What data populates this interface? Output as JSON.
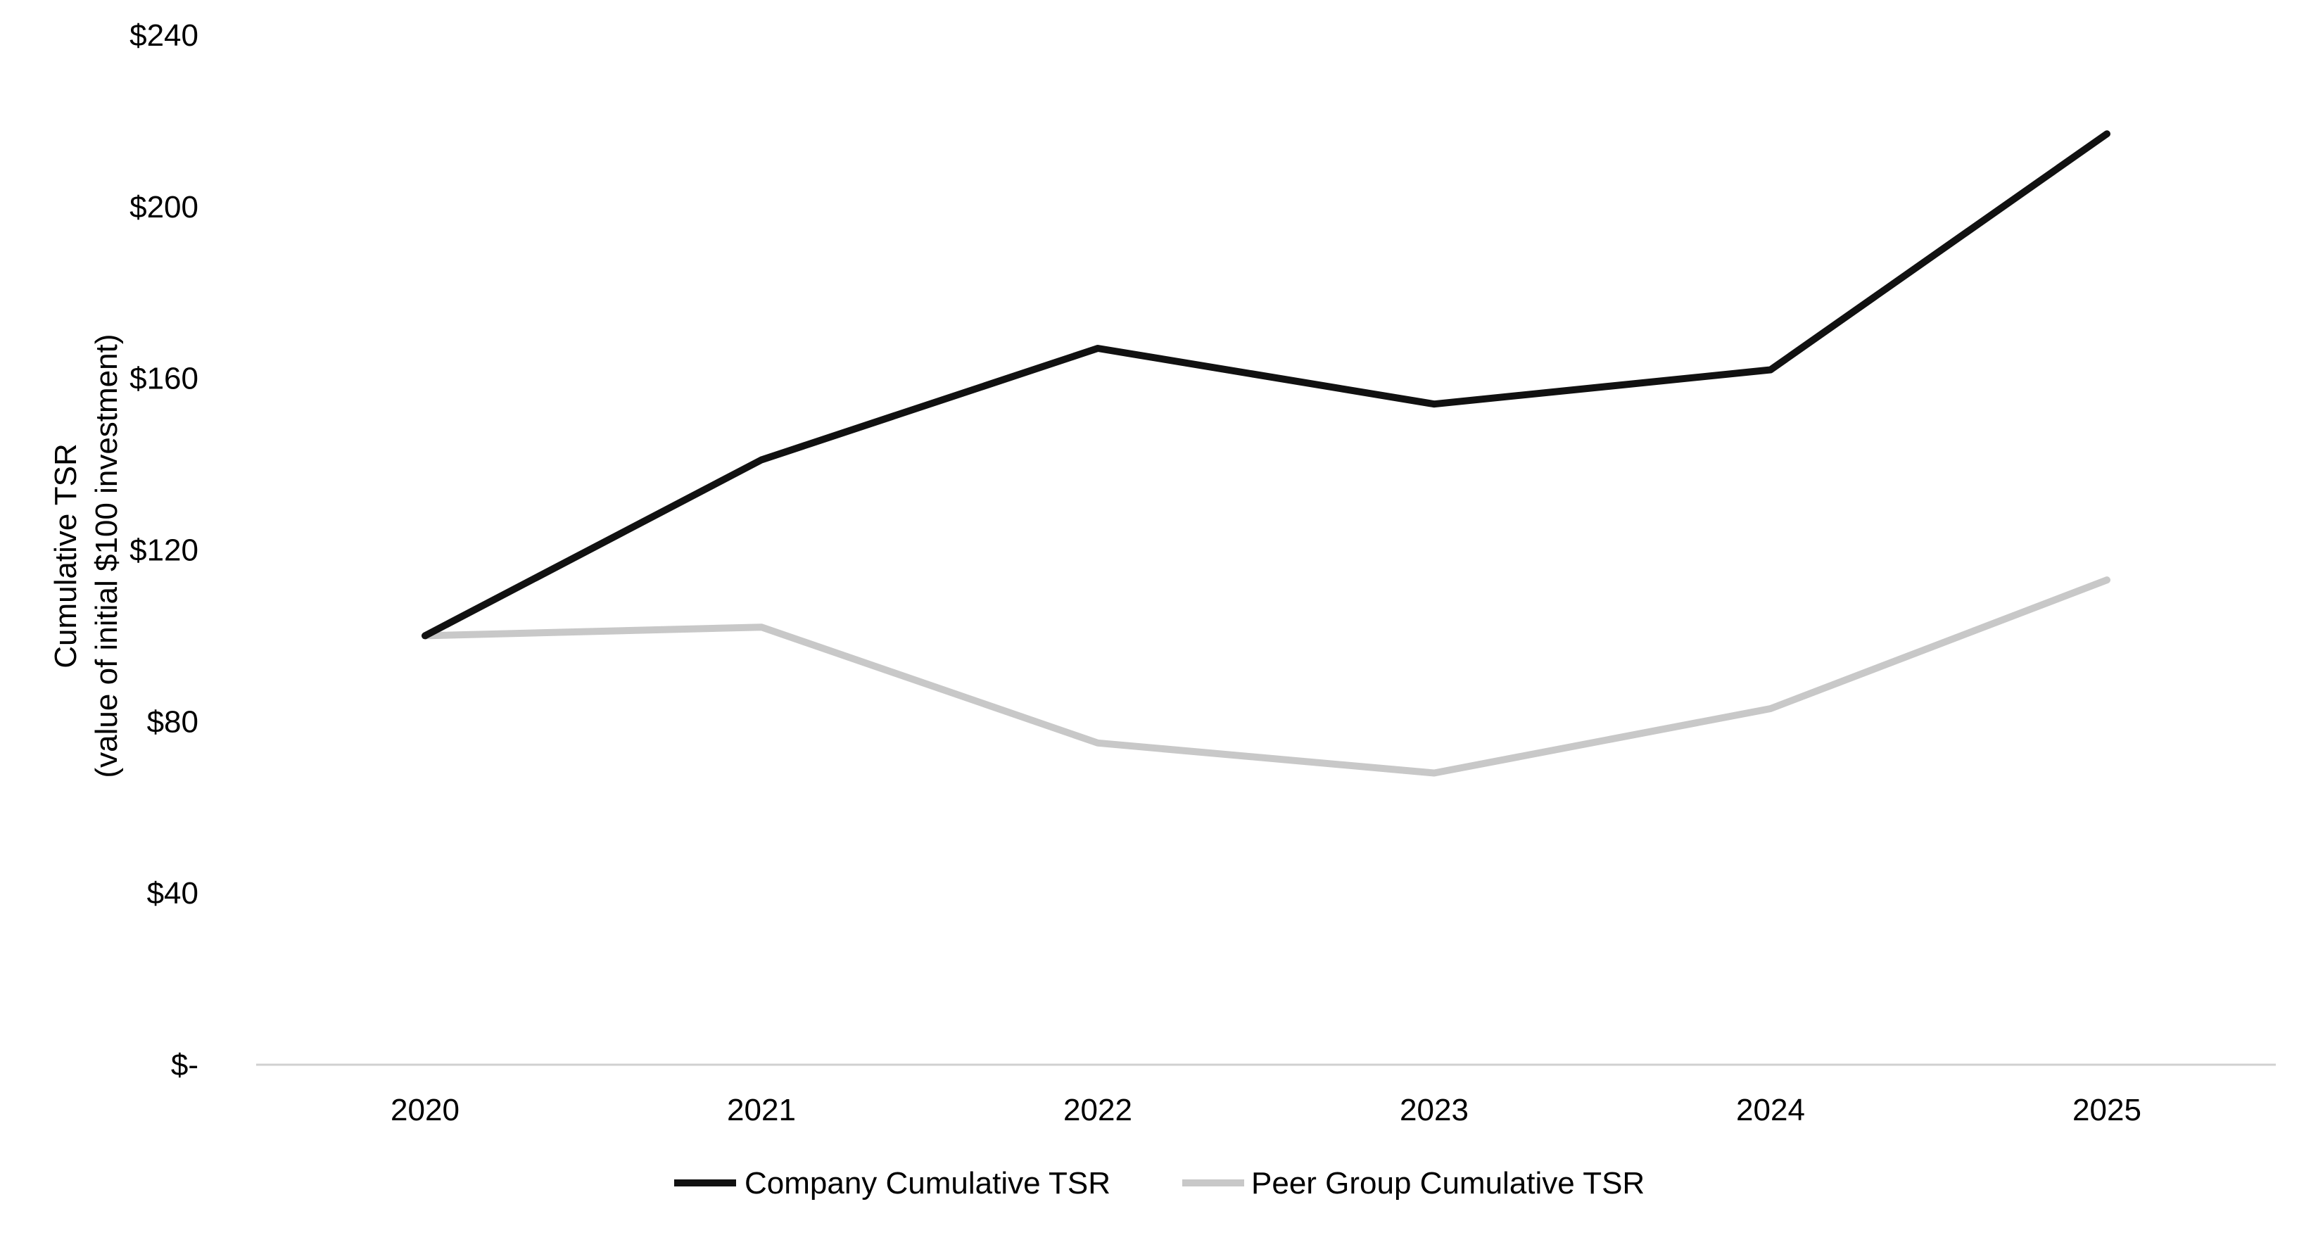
{
  "chart_data": {
    "type": "line",
    "title": "",
    "xlabel": "",
    "ylabel": [
      "Cumulative TSR",
      "(value of initial $100 investment)"
    ],
    "categories": [
      "2020",
      "2021",
      "2022",
      "2023",
      "2024",
      "2025"
    ],
    "ylim": [
      0,
      240
    ],
    "yticks": [
      {
        "value": 0,
        "label": "$-"
      },
      {
        "value": 40,
        "label": "$40"
      },
      {
        "value": 80,
        "label": "$80"
      },
      {
        "value": 120,
        "label": "$120"
      },
      {
        "value": 160,
        "label": "$160"
      },
      {
        "value": 200,
        "label": "$200"
      },
      {
        "value": 240,
        "label": "$240"
      }
    ],
    "grid": false,
    "legend_position": "bottom",
    "series": [
      {
        "name": "Company Cumulative TSR",
        "color": "#111111",
        "values": [
          100,
          141,
          167,
          154,
          162,
          217
        ]
      },
      {
        "name": "Peer Group Cumulative TSR",
        "color": "#c8c8c8",
        "values": [
          100,
          102,
          75,
          68,
          83,
          113
        ]
      }
    ]
  }
}
